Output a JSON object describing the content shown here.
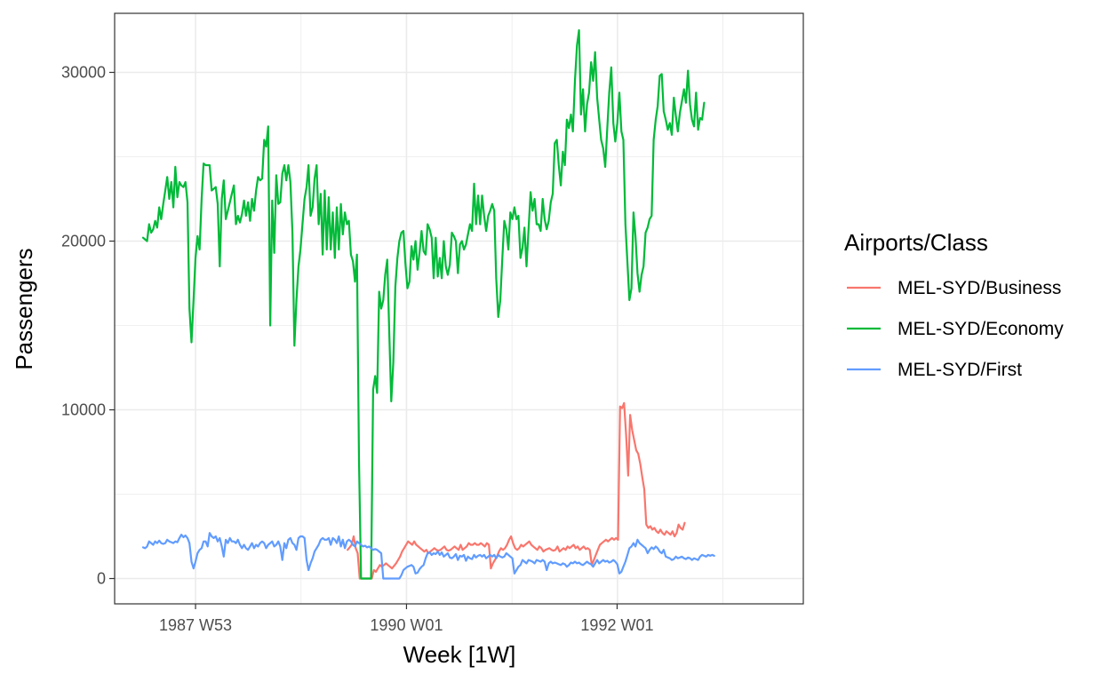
{
  "chart_data": {
    "type": "line",
    "xlabel": "Week [1W]",
    "ylabel": "Passengers",
    "x_ticks": [
      "1987 W53",
      "1990 W01",
      "1992 W01"
    ],
    "y_ticks": [
      0,
      10000,
      20000,
      30000
    ],
    "ylim": [
      -1500,
      33500
    ],
    "x_range_weeks": [
      "1987 W27",
      "1993 W27"
    ],
    "grid": true,
    "legend_title": "Airports/Class",
    "legend_position": "right",
    "series": [
      {
        "name": "MEL-SYD/Business",
        "color": "#F8766D",
        "start_week": "1989 W24",
        "values": [
          1700,
          1850,
          2000,
          2500,
          1800,
          1500,
          0,
          0,
          0,
          0,
          0,
          0,
          0,
          500,
          400,
          600,
          800,
          700,
          800,
          900,
          800,
          700,
          600,
          750,
          900,
          1100,
          1300,
          1600,
          1800,
          2000,
          2200,
          2100,
          2000,
          2200,
          2000,
          1900,
          1800,
          1700,
          1600,
          1700,
          1500,
          1600,
          1700,
          1800,
          1700,
          1650,
          1700,
          1800,
          1900,
          1700,
          1650,
          1700,
          1800,
          1900,
          1800,
          1700,
          2000,
          1700,
          1800,
          1900,
          2100,
          2000,
          2000,
          2100,
          2000,
          2000,
          2100,
          2000,
          1900,
          2100,
          2000,
          600,
          900,
          1100,
          1300,
          1600,
          1800,
          1700,
          1800,
          2000,
          2300,
          2500,
          2100,
          1800,
          1700,
          1800,
          2000,
          1900,
          2000,
          2100,
          2200,
          2000,
          1900,
          1800,
          1700,
          1900,
          1800,
          1600,
          1700,
          1750,
          1800,
          1700,
          1650,
          1700,
          1900,
          1600,
          1700,
          1800,
          1700,
          1900,
          1800,
          1900,
          2000,
          1800,
          1900,
          1700,
          1800,
          1900,
          1750,
          1800,
          1700,
          800,
          1100,
          1400,
          1700,
          2000,
          2100,
          2200,
          2300,
          2200,
          2300,
          2400,
          2300,
          2400,
          2300,
          10200,
          10100,
          10400,
          8500,
          6100,
          9700,
          8800,
          8200,
          7600,
          7400,
          6800,
          6000,
          5300,
          3200,
          3000,
          3100,
          2900,
          3000,
          2800,
          2700,
          2900,
          2700,
          2600,
          2800,
          2700,
          2600,
          2800,
          2500,
          2700,
          3200,
          3000,
          2900,
          3300
        ]
      },
      {
        "name": "MEL-SYD/Economy",
        "color": "#00BA38",
        "start_week": "1987 W27",
        "values": [
          20200,
          20100,
          20000,
          21000,
          20500,
          20700,
          21200,
          20800,
          22000,
          21300,
          22200,
          23000,
          23800,
          22500,
          23500,
          22000,
          24400,
          22600,
          23500,
          23300,
          23200,
          23500,
          22300,
          16000,
          14000,
          16500,
          19000,
          20300,
          19500,
          22500,
          24600,
          24500,
          24500,
          24500,
          23000,
          23100,
          23200,
          22200,
          18500,
          22500,
          23600,
          21300,
          21800,
          22300,
          22800,
          23300,
          21000,
          21500,
          21100,
          21600,
          22400,
          21500,
          22300,
          21200,
          22500,
          21800,
          23000,
          23800,
          23600,
          23700,
          26000,
          25600,
          26800,
          15000,
          22400,
          19300,
          23900,
          22200,
          22300,
          24000,
          24500,
          23600,
          24500,
          23500,
          20500,
          13800,
          16500,
          18500,
          19500,
          21000,
          22500,
          23200,
          24500,
          21500,
          22000,
          23700,
          24500,
          21000,
          22800,
          19200,
          23000,
          19500,
          22600,
          19500,
          21700,
          19000,
          22000,
          19500,
          22200,
          20400,
          21700,
          21000,
          21200,
          19200,
          18800,
          17600,
          19200,
          7000,
          0,
          0,
          0,
          0,
          0,
          0,
          11200,
          12000,
          11000,
          17000,
          16000,
          16500,
          18000,
          18900,
          14500,
          10500,
          12800,
          17300,
          19000,
          20000,
          20500,
          20600,
          18700,
          17200,
          17600,
          19700,
          18900,
          20000,
          18300,
          19300,
          20600,
          19400,
          19200,
          21000,
          20700,
          20200,
          17800,
          20200,
          17900,
          19000,
          17800,
          20000,
          18500,
          18000,
          18600,
          20500,
          20300,
          20000,
          18100,
          19800,
          20000,
          19500,
          19800,
          20400,
          21000,
          20600,
          23400,
          21000,
          22700,
          21000,
          22700,
          21500,
          20600,
          21500,
          21800,
          22200,
          21800,
          17800,
          15500,
          16500,
          19000,
          21200,
          20700,
          19500,
          21700,
          21300,
          22000,
          21300,
          21500,
          19000,
          19600,
          20800,
          18500,
          20700,
          22900,
          21800,
          22500,
          21000,
          21000,
          20600,
          22500,
          21300,
          20700,
          21200,
          22300,
          22800,
          25800,
          26000,
          24500,
          23300,
          25300,
          24500,
          27200,
          26700,
          27500,
          26500,
          29500,
          31600,
          32500,
          27500,
          29000,
          26500,
          28100,
          28800,
          30600,
          29500,
          31200,
          28500,
          27200,
          26000,
          25500,
          24400,
          26700,
          28800,
          30300,
          27000,
          25900,
          27000,
          28800,
          26500,
          26000,
          21000,
          18700,
          16500,
          17200,
          21700,
          20300,
          18100,
          17000,
          18000,
          18500,
          20500,
          20800,
          21300,
          21500,
          26000,
          27200,
          28000,
          29800,
          29900,
          27700,
          27200,
          26600,
          27000,
          26300,
          28500,
          27400,
          26500,
          27600,
          28300,
          29000,
          28200,
          30100,
          28100,
          27200,
          26800,
          28800,
          26600,
          27300,
          27200,
          28200
        ]
      },
      {
        "name": "MEL-SYD/First",
        "color": "#619CFF",
        "start_week": "1987 W27",
        "values": [
          1850,
          1800,
          1900,
          2200,
          2100,
          2000,
          2200,
          2100,
          2250,
          2100,
          2050,
          2100,
          2300,
          2200,
          2150,
          2100,
          2200,
          2150,
          2400,
          2600,
          2450,
          2550,
          2400,
          2100,
          1000,
          600,
          1000,
          1500,
          1700,
          1800,
          2200,
          2200,
          1900,
          2700,
          2500,
          2400,
          2500,
          2200,
          2400,
          1900,
          1300,
          2300,
          2100,
          2400,
          2200,
          2200,
          2100,
          2300,
          2000,
          1800,
          2000,
          1800,
          1700,
          1900,
          2100,
          1800,
          2000,
          1900,
          2100,
          2200,
          2100,
          1800,
          2000,
          2100,
          2200,
          1900,
          2000,
          2200,
          1900,
          1100,
          2100,
          1800,
          2300,
          2400,
          2100,
          2000,
          1700,
          2400,
          2500,
          2500,
          2400,
          1100,
          500,
          900,
          1200,
          1600,
          1800,
          2000,
          2300,
          2400,
          2300,
          2300,
          2400,
          2000,
          2400,
          2300,
          2100,
          2500,
          1900,
          2300,
          1800,
          2200,
          2300,
          2200,
          2000,
          1900,
          2200,
          2100,
          2000,
          1900,
          1950,
          1850,
          1900,
          1800,
          1700,
          1750,
          1700,
          1600,
          1500,
          0,
          0,
          0,
          0,
          0,
          0,
          0,
          0,
          0,
          200,
          500,
          600,
          700,
          750,
          800,
          700,
          300,
          350,
          550,
          700,
          800,
          1200,
          1500,
          1550,
          1400,
          1500,
          1450,
          1600,
          1400,
          1550,
          1300,
          1400,
          1500,
          1250,
          1200,
          1300,
          1450,
          1100,
          1350,
          1300,
          1400,
          1050,
          1300,
          1200,
          1150,
          1400,
          1250,
          1350,
          1400,
          1300,
          1400,
          1200,
          1300,
          1400,
          1300,
          1400,
          1200,
          1400,
          1300,
          1250,
          1300,
          1500,
          1400,
          1300,
          1200,
          300,
          500,
          700,
          800,
          1100,
          1000,
          900,
          1100,
          1050,
          1000,
          900,
          1100,
          1050,
          1000,
          1100,
          1000,
          500,
          900,
          1000,
          900,
          950,
          900,
          850,
          800,
          900,
          850,
          700,
          800,
          950,
          900,
          1000,
          900,
          950,
          850,
          800,
          900,
          1000,
          900,
          850,
          700,
          900,
          1100,
          900,
          1000,
          1100,
          1000,
          1050,
          950,
          1000,
          1100,
          1000,
          850,
          300,
          400,
          700,
          1000,
          1400,
          1800,
          1900,
          2100,
          1900,
          2300,
          2100,
          2000,
          1900,
          1800,
          1500,
          1700,
          1850,
          1750,
          1900,
          1800,
          1600,
          1500,
          1700,
          1300,
          1250,
          1200,
          1100,
          1150,
          1300,
          1200,
          1250,
          1300,
          1200,
          1150,
          1250,
          1200,
          1100,
          1200,
          1150,
          1100,
          1300,
          1400,
          1350,
          1300,
          1400,
          1350,
          1400,
          1350
        ]
      }
    ]
  }
}
